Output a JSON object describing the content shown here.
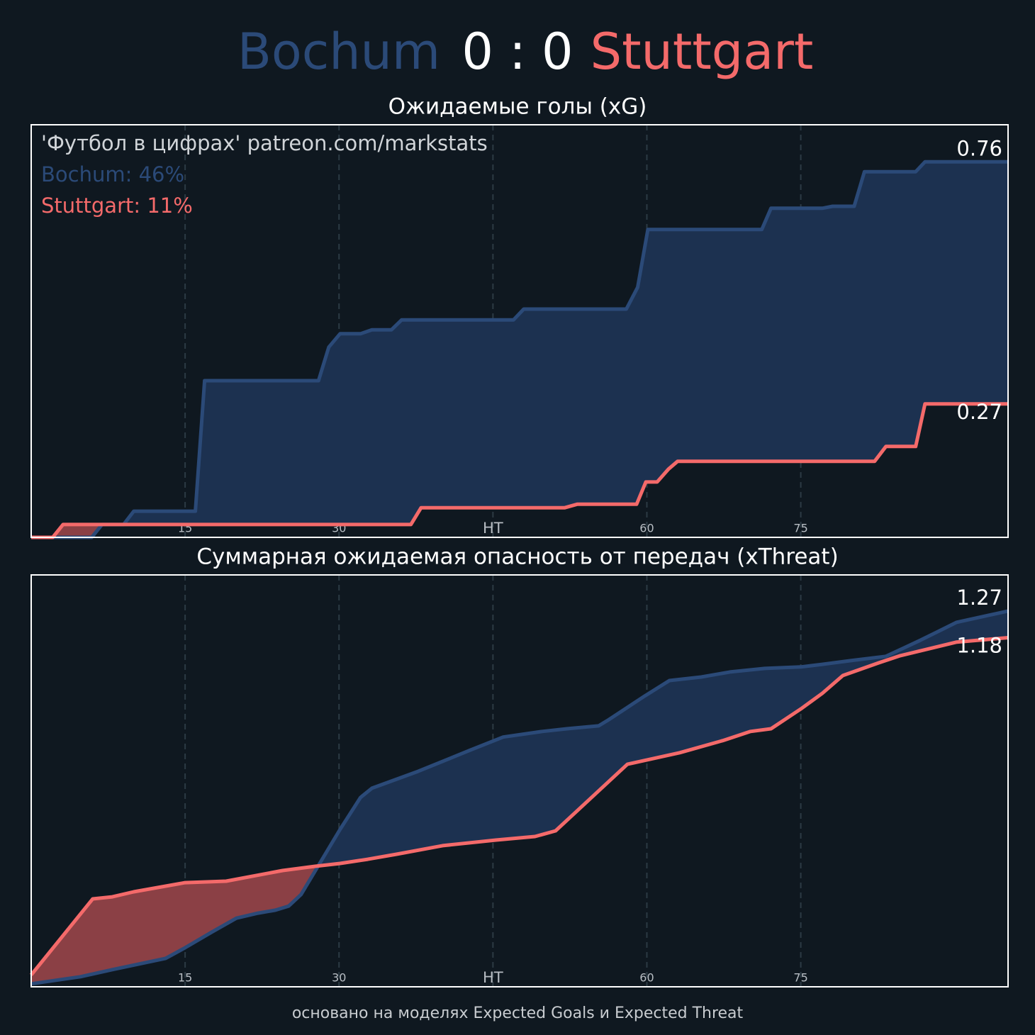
{
  "header": {
    "home": "Bochum",
    "score": "0 : 0",
    "away": "Stuttgart"
  },
  "chart_data": [
    {
      "type": "line",
      "title": "Ожидаемые голы (xG)",
      "annotation": "'Футбол в цифрах' patreon.com/markstats",
      "legend": [
        "Bochum: 46%",
        "Stuttgart: 11%"
      ],
      "xlim": [
        0,
        95.2
      ],
      "ylim": [
        0,
        0.835
      ],
      "xticks": [
        15,
        30,
        {
          "value": 45,
          "label": "HT"
        },
        60,
        75
      ],
      "grid": true,
      "series": [
        {
          "name": "Bochum",
          "color": "#2b4a78",
          "fill_color": "#1c3150",
          "x": [
            0,
            5.9,
            6.9,
            9,
            10,
            16,
            16.9,
            28,
            29,
            30.1,
            32.1,
            33.2,
            35.1,
            36.1,
            47,
            48,
            58,
            59.1,
            60.1,
            71.2,
            72.1,
            77.1,
            78.1,
            80.2,
            81.2,
            86.2,
            87.1,
            95.2
          ],
          "values": [
            0,
            0,
            0.026,
            0.026,
            0.053,
            0.053,
            0.317,
            0.317,
            0.385,
            0.412,
            0.412,
            0.42,
            0.42,
            0.44,
            0.44,
            0.462,
            0.462,
            0.506,
            0.623,
            0.623,
            0.666,
            0.666,
            0.67,
            0.67,
            0.74,
            0.74,
            0.76,
            0.76
          ]
        },
        {
          "name": "Stuttgart",
          "color": "#f46a6a",
          "fill_color": "#8b4045",
          "x": [
            0,
            2.1,
            3.1,
            37,
            38,
            52,
            53.2,
            59,
            59.9,
            61,
            62.1,
            63,
            82.2,
            83.3,
            86.2,
            87.1,
            95.2
          ],
          "values": [
            0,
            0,
            0.026,
            0.026,
            0.06,
            0.06,
            0.067,
            0.067,
            0.112,
            0.112,
            0.138,
            0.154,
            0.154,
            0.184,
            0.184,
            0.27,
            0.27
          ]
        }
      ]
    },
    {
      "type": "line",
      "title": "Суммарная ожидаемая опасность от передач (xThreat)",
      "xlim": [
        0,
        95.2
      ],
      "ylim": [
        0,
        1.392
      ],
      "xticks": [
        15,
        30,
        {
          "value": 45,
          "label": "HT"
        },
        60,
        75
      ],
      "grid": true,
      "series": [
        {
          "name": "Bochum",
          "color": "#2b4a78",
          "fill_color": "#1c3150",
          "x": [
            0,
            4.8,
            7.9,
            13.1,
            15,
            17.6,
            20,
            22.1,
            23.8,
            25.1,
            26.3,
            30.1,
            32.1,
            33.2,
            37.7,
            42.8,
            46,
            49.8,
            52.2,
            55.3,
            56.3,
            59.8,
            62.2,
            65.3,
            68.1,
            71.5,
            75,
            77.1,
            79.8,
            83.3,
            86.7,
            90.2,
            95.2
          ],
          "values": [
            0.01,
            0.034,
            0.058,
            0.096,
            0.132,
            0.185,
            0.232,
            0.249,
            0.259,
            0.273,
            0.312,
            0.532,
            0.64,
            0.671,
            0.728,
            0.8,
            0.844,
            0.863,
            0.872,
            0.882,
            0.903,
            0.983,
            1.035,
            1.047,
            1.064,
            1.076,
            1.081,
            1.09,
            1.102,
            1.117,
            1.172,
            1.232,
            1.27
          ]
        },
        {
          "name": "Stuttgart",
          "color": "#f46a6a",
          "fill_color": "#8b4045",
          "x": [
            0,
            3.1,
            6,
            7.9,
            10,
            15,
            19,
            24.5,
            27.6,
            30.1,
            32.8,
            35.6,
            40.1,
            45.3,
            49.1,
            51.1,
            58.1,
            63.2,
            67.4,
            70.1,
            72.1,
            75,
            77.1,
            79.1,
            82.6,
            84.7,
            86.7,
            90.2,
            95.2
          ],
          "values": [
            0.04,
            0.173,
            0.297,
            0.304,
            0.321,
            0.352,
            0.357,
            0.393,
            0.407,
            0.417,
            0.431,
            0.448,
            0.477,
            0.496,
            0.508,
            0.527,
            0.752,
            0.791,
            0.832,
            0.863,
            0.872,
            0.939,
            0.992,
            1.052,
            1.095,
            1.119,
            1.136,
            1.165,
            1.18
          ]
        }
      ]
    }
  ],
  "footer": "основано на моделях Expected Goals и Expected Threat"
}
